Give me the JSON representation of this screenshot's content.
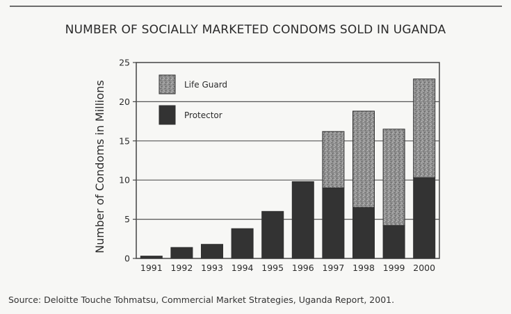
{
  "chart_data": {
    "type": "bar",
    "stacked": true,
    "title": "NUMBER OF SOCIALLY MARKETED CONDOMS SOLD IN UGANDA",
    "xlabel": "",
    "ylabel": "Number of Condoms in Millions",
    "ylim": [
      0,
      25
    ],
    "yticks": [
      "0",
      "5",
      "10",
      "15",
      "20",
      "25"
    ],
    "categories": [
      "1991",
      "1992",
      "1993",
      "1994",
      "1995",
      "1996",
      "1997",
      "1998",
      "1999",
      "2000"
    ],
    "series": [
      {
        "name": "Protector",
        "color": "#333333",
        "values": [
          0.3,
          1.4,
          1.8,
          3.8,
          6.0,
          9.8,
          9.0,
          6.5,
          4.2,
          10.3
        ]
      },
      {
        "name": "Life Guard",
        "color": "#8a8a8a",
        "values": [
          0,
          0,
          0,
          0,
          0,
          0,
          7.2,
          12.3,
          12.3,
          12.6
        ]
      }
    ],
    "legend": [
      "Life Guard",
      "Protector"
    ],
    "legend_position": "top-left",
    "grid": true,
    "source": "Source: Deloitte Touche Tohmatsu, Commercial Market Strategies, Uganda Report, 2001."
  }
}
